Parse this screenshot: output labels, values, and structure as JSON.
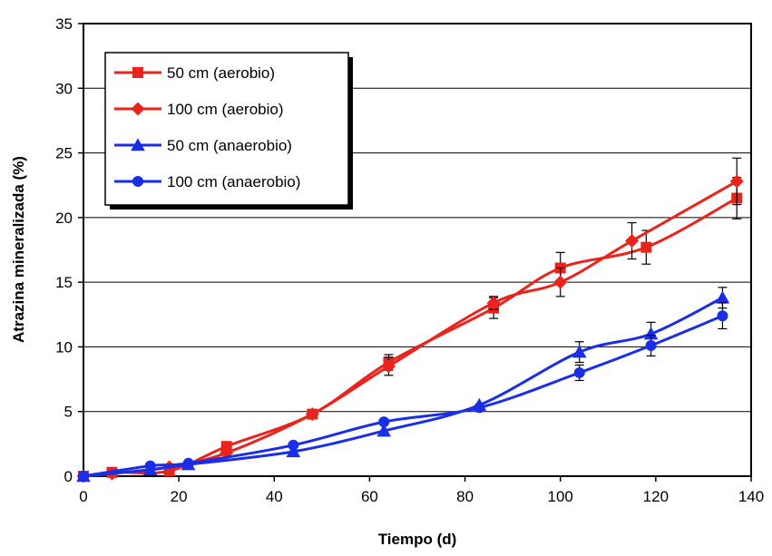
{
  "chart_data": {
    "type": "line",
    "title": "",
    "xlabel": "Tiempo (d)",
    "ylabel": "Atrazina mineralizada (%)",
    "xlim": [
      0,
      140
    ],
    "ylim": [
      0,
      35
    ],
    "xticks": [
      0,
      20,
      40,
      60,
      80,
      100,
      120,
      140
    ],
    "yticks": [
      0,
      5,
      10,
      15,
      20,
      25,
      30,
      35
    ],
    "grid": "horizontal",
    "legend_position": "top-left",
    "series": [
      {
        "name": "50 cm (aerobio)",
        "color": "#e8241c",
        "marker": "square",
        "x": [
          0,
          6,
          18,
          30,
          48,
          64,
          86,
          100,
          118,
          137
        ],
        "y": [
          0.0,
          0.3,
          0.4,
          2.3,
          4.8,
          8.8,
          13.0,
          16.1,
          17.7,
          21.5
        ],
        "err": [
          0,
          0,
          0,
          0,
          0,
          0.6,
          0.8,
          1.2,
          1.3,
          1.6
        ]
      },
      {
        "name": "100 cm (aerobio)",
        "color": "#e8241c",
        "marker": "diamond",
        "x": [
          0,
          6,
          18,
          30,
          48,
          64,
          86,
          100,
          115,
          137
        ],
        "y": [
          0.0,
          0.2,
          0.7,
          1.8,
          4.8,
          8.5,
          13.4,
          15.0,
          18.2,
          22.8
        ],
        "err": [
          0,
          0,
          0,
          0,
          0,
          0.7,
          0.5,
          1.1,
          1.4,
          1.8
        ]
      },
      {
        "name": "50 cm (anaerobio)",
        "color": "#1a2ee8",
        "marker": "triangle",
        "x": [
          0,
          14,
          22,
          44,
          63,
          83,
          104,
          119,
          134
        ],
        "y": [
          0.0,
          0.5,
          0.9,
          1.9,
          3.5,
          5.5,
          9.6,
          11.0,
          13.8
        ],
        "err": [
          0,
          0,
          0,
          0,
          0,
          0,
          0.8,
          0.9,
          0.8
        ]
      },
      {
        "name": "100 cm (anaerobio)",
        "color": "#1a2ee8",
        "marker": "circle",
        "x": [
          0,
          14,
          22,
          44,
          63,
          83,
          104,
          119,
          134
        ],
        "y": [
          0.0,
          0.8,
          1.0,
          2.4,
          4.2,
          5.3,
          8.0,
          10.1,
          12.4
        ],
        "err": [
          0,
          0,
          0,
          0,
          0,
          0,
          0.6,
          0.8,
          1.0
        ]
      }
    ]
  }
}
